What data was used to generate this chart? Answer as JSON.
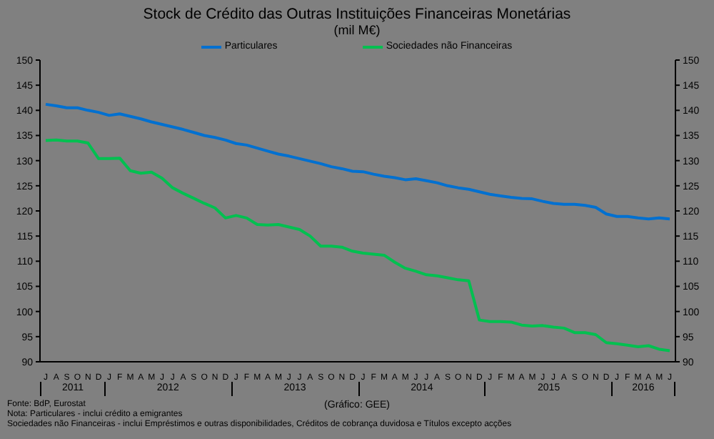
{
  "chart_data": {
    "type": "line",
    "title": "Stock de Crédito das Outras Instituições Financeiras Monetárias",
    "subtitle": "(mil M€)",
    "categories": [
      "J",
      "A",
      "S",
      "O",
      "N",
      "D",
      "J",
      "F",
      "M",
      "A",
      "M",
      "J",
      "J",
      "A",
      "S",
      "O",
      "N",
      "D",
      "J",
      "F",
      "M",
      "A",
      "M",
      "J",
      "J",
      "A",
      "S",
      "O",
      "N",
      "D",
      "J",
      "F",
      "M",
      "A",
      "M",
      "J",
      "J",
      "A",
      "S",
      "O",
      "N",
      "D",
      "J",
      "F",
      "M",
      "A",
      "M",
      "J",
      "J",
      "A",
      "S",
      "O",
      "N",
      "D",
      "J",
      "F",
      "M",
      "A",
      "M",
      "J"
    ],
    "series": [
      {
        "name": "Particulares",
        "color": "#0070d0",
        "values": [
          141.2,
          140.9,
          140.5,
          140.5,
          140.0,
          139.6,
          139.0,
          139.3,
          138.8,
          138.3,
          137.7,
          137.2,
          136.7,
          136.2,
          135.6,
          135.0,
          134.6,
          134.1,
          133.4,
          133.1,
          132.5,
          131.9,
          131.3,
          130.9,
          130.4,
          129.9,
          129.4,
          128.8,
          128.4,
          127.9,
          127.8,
          127.3,
          126.9,
          126.6,
          126.2,
          126.4,
          126.0,
          125.6,
          125.0,
          124.6,
          124.3,
          123.8,
          123.3,
          123.0,
          122.7,
          122.5,
          122.4,
          121.9,
          121.5,
          121.3,
          121.3,
          121.1,
          120.7,
          119.4,
          118.9,
          118.9,
          118.6,
          118.4,
          118.6,
          118.4
        ]
      },
      {
        "name": "Sociedades não Financeiras",
        "color": "#00c050",
        "values": [
          134.0,
          134.1,
          133.9,
          133.9,
          133.5,
          130.4,
          130.4,
          130.5,
          128.0,
          127.5,
          127.7,
          126.5,
          124.6,
          123.5,
          122.5,
          121.5,
          120.6,
          118.6,
          119.1,
          118.6,
          117.3,
          117.2,
          117.3,
          116.8,
          116.3,
          115.0,
          113.0,
          113.0,
          112.8,
          112.0,
          111.6,
          111.4,
          111.2,
          109.8,
          108.6,
          108.0,
          107.3,
          107.1,
          106.7,
          106.3,
          106.1,
          98.3,
          98.0,
          98.0,
          97.9,
          97.3,
          97.1,
          97.2,
          96.9,
          96.7,
          95.8,
          95.8,
          95.4,
          93.8,
          93.6,
          93.3,
          93.0,
          93.2,
          92.5,
          92.2
        ]
      }
    ],
    "ylim": [
      90,
      150
    ],
    "yticks": [
      90,
      95,
      100,
      105,
      110,
      115,
      120,
      125,
      130,
      135,
      140,
      145,
      150
    ],
    "y2lim": [
      90,
      150
    ],
    "y2ticks": [
      90,
      95,
      100,
      105,
      110,
      115,
      120,
      125,
      130,
      135,
      140,
      145,
      150
    ],
    "legend": "top",
    "marker": "none",
    "line_style": "solid",
    "annotations": [
      "2011",
      "2012",
      "2013",
      "2014",
      "2015",
      "2016",
      "Fonte: BdP, Eurostat",
      "(Gráfico: GEE)",
      "Nota: Particulares - inclui crédito a emigrantes",
      "Sociedades não Financeiras - inclui Empréstimos e outras disponibilidades, Créditos de cobrança duvidosa e Títulos excepto acções"
    ]
  }
}
